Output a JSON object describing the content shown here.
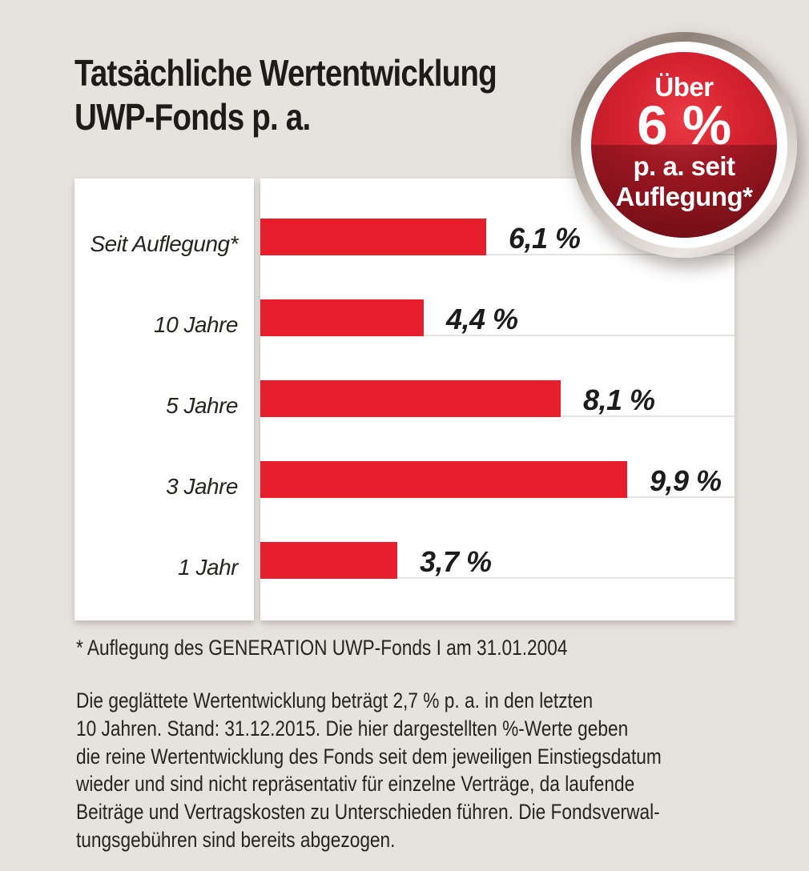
{
  "page": {
    "background_color": "#e6e2de"
  },
  "title": {
    "line1": "Tatsächliche Wertentwicklung",
    "line2": "UWP-Fonds p. a."
  },
  "badge": {
    "line1": "Über",
    "line2": "6 %",
    "line3": "p. a. seit",
    "line4": "Auflegung*"
  },
  "chart_data": {
    "type": "bar",
    "orientation": "horizontal",
    "title": "Tatsächliche Wertentwicklung UWP-Fonds p. a.",
    "categories": [
      "Seit Auflegung*",
      "10 Jahre",
      "5 Jahre",
      "3 Jahre",
      "1 Jahr"
    ],
    "values": [
      6.1,
      4.4,
      8.1,
      9.9,
      3.7
    ],
    "value_labels": [
      "6,1 %",
      "4,4 %",
      "8,1 %",
      "9,9 %",
      "3,7 %"
    ],
    "xlim": [
      0,
      12.8
    ],
    "grid": false,
    "legend": false,
    "bar_color": "#e71e2b",
    "category_label_style": "italic",
    "value_label_style": "bold-italic"
  },
  "footnote": "* Auflegung des GENERATION UWP-Fonds I am 31.01.2004",
  "body": {
    "lines": [
      "Die geglättete Wertentwicklung beträgt 2,7 % p. a. in den letzten",
      "10 Jahren. Stand: 31.12.2015. Die hier dargestellten %-Werte geben",
      "die reine Wertentwicklung des Fonds seit dem jeweiligen Einstiegsdatum",
      "wieder und sind nicht repräsentativ für einzelne Verträge, da laufende",
      "Beiträge und Vertragskosten zu Unterschieden führen. Die Fondsverwal-",
      "tungsgebühren sind bereits abgezogen."
    ]
  }
}
